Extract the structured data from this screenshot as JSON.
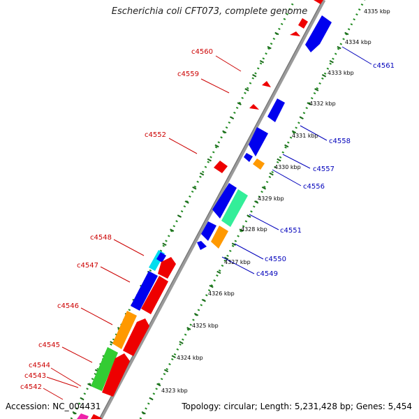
{
  "title": "Escherichia coli CFT073, complete genome",
  "accession": "Accession: NC_004431",
  "topology": "Topology: circular; Length: 5,231,428 bp; Genes: 5,454",
  "colors": {
    "backbone": "#999999",
    "dots": "#228b22",
    "reverse_label": "#cc0000",
    "forward_label": "#0000bb",
    "red": "#ff0000",
    "blue": "#0000ff",
    "orange": "#ff9900",
    "green": "#33cc33",
    "mint": "#33ee99",
    "cyan": "#00ddee",
    "magenta": "#ee22aa"
  },
  "ticks": [
    {
      "label": "4323 kbp"
    },
    {
      "label": "4324 kbp"
    },
    {
      "label": "4325 kbp"
    },
    {
      "label": "4326 kbp"
    },
    {
      "label": "4327 kbp"
    },
    {
      "label": "4328 kbp"
    },
    {
      "label": "4329 kbp"
    },
    {
      "label": "4330 kbp"
    },
    {
      "label": "4331 kbp"
    },
    {
      "label": "4332 kbp"
    },
    {
      "label": "4333 kbp"
    },
    {
      "label": "4334 kbp"
    },
    {
      "label": "4335 kbp"
    }
  ],
  "reverse_labels": [
    "c4560",
    "c4559",
    "c4552",
    "c4548",
    "c4547",
    "c4546",
    "c4545",
    "c4544",
    "c4543",
    "c4542"
  ],
  "forward_labels": [
    "c4561",
    "c4558",
    "c4557",
    "c4556",
    "c4551",
    "c4550",
    "c4549"
  ]
}
